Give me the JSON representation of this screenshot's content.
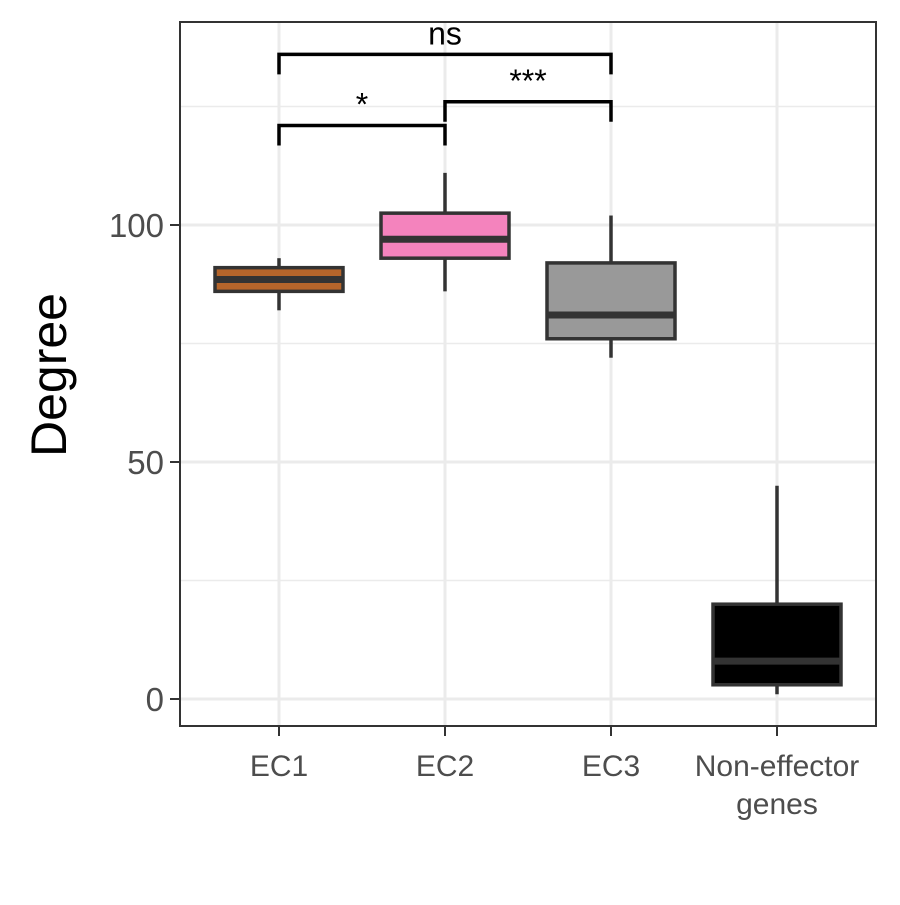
{
  "chart_data": {
    "type": "box",
    "title": "",
    "xlabel": "",
    "ylabel": "Degree",
    "ylim": [
      -5,
      143
    ],
    "y_major_ticks": [
      0,
      50,
      100
    ],
    "y_minor_ticks": [
      25,
      75,
      125
    ],
    "grid": true,
    "legend": "none",
    "categories": [
      {
        "label_lines": [
          "EC1"
        ]
      },
      {
        "label_lines": [
          "EC2"
        ]
      },
      {
        "label_lines": [
          "EC3"
        ]
      },
      {
        "label_lines": [
          "Non-effector",
          "genes"
        ]
      }
    ],
    "boxes": [
      {
        "category": "EC1",
        "min": 82,
        "q1": 86,
        "median": 88.5,
        "q3": 91,
        "max": 93,
        "color": "#b5652b"
      },
      {
        "category": "EC2",
        "min": 86,
        "q1": 93,
        "median": 97,
        "q3": 102.5,
        "max": 111,
        "color": "#f483bd"
      },
      {
        "category": "EC3",
        "min": 72,
        "q1": 76,
        "median": 81,
        "q3": 92,
        "max": 102,
        "color": "#999999"
      },
      {
        "category": "Non-effector genes",
        "min": 1,
        "q1": 3,
        "median": 8,
        "q3": 20,
        "max": 45,
        "color": "#000000"
      }
    ],
    "significance": [
      {
        "from": 0,
        "to": 1,
        "y": 121,
        "label": "*"
      },
      {
        "from": 1,
        "to": 2,
        "y": 126,
        "label": "***"
      },
      {
        "from": 0,
        "to": 2,
        "y": 136,
        "label": "ns"
      }
    ],
    "colors": {
      "panel_border": "#333333",
      "grid": "#ebebeb",
      "box_outline": "#333333",
      "bracket": "#000000"
    }
  }
}
